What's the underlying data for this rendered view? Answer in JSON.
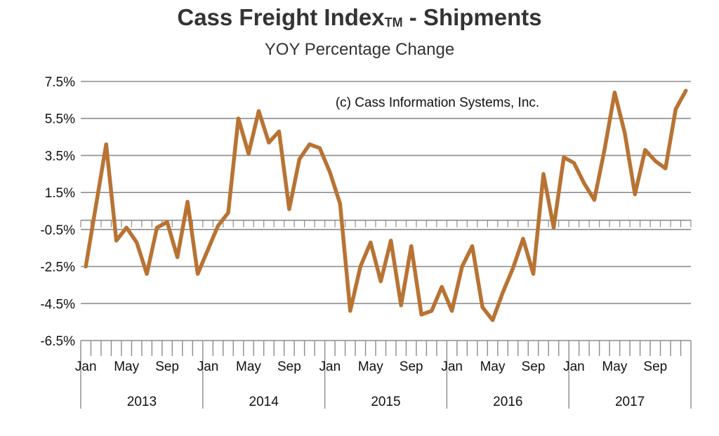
{
  "title_main": "Cass Freight Index",
  "title_tm": "TM",
  "title_rest": " - Shipments",
  "subtitle": "YOY Percentage Change",
  "annotation": "(c) Cass Information Systems, Inc.",
  "colors": {
    "line": "#b87333",
    "grid": "#8c8c8c",
    "axis": "#8c8c8c",
    "text": "#111111"
  },
  "chart_data": {
    "type": "line",
    "title": "Cass Freight Index - Shipments",
    "subtitle": "YOY Percentage Change",
    "ylim": [
      -6.5,
      7.5
    ],
    "yticks": [
      "7.5%",
      "5.5%",
      "3.5%",
      "1.5%",
      "-0.5%",
      "-2.5%",
      "-4.5%",
      "-6.5%"
    ],
    "ytick_values": [
      7.5,
      5.5,
      3.5,
      1.5,
      -0.5,
      -2.5,
      -4.5,
      -6.5
    ],
    "grid": true,
    "x_month_labels": [
      "Jan",
      "May",
      "Sep"
    ],
    "years": [
      "2013",
      "2014",
      "2015",
      "2016",
      "2017"
    ],
    "series": [
      {
        "values": [
          -2.5,
          0.8,
          4.1,
          -1.1,
          -0.4,
          -1.2,
          -2.9,
          -0.4,
          -0.1,
          -2.0,
          1.0,
          -2.9,
          -1.6,
          -0.3,
          0.4,
          5.5,
          3.6,
          5.9,
          4.2,
          4.8,
          0.6,
          3.3,
          4.1,
          3.9,
          2.6,
          0.9,
          -4.9,
          -2.5,
          -1.2,
          -3.3,
          -1.1,
          -4.6,
          -1.4,
          -5.1,
          -4.9,
          -3.6,
          -4.9,
          -2.5,
          -1.4,
          -4.7,
          -5.4,
          -3.9,
          -2.6,
          -1.0,
          -2.9,
          2.5,
          -0.4,
          3.4,
          3.1,
          2.0,
          1.1,
          3.8,
          6.9,
          4.7,
          1.4,
          3.8,
          3.2,
          2.8,
          6.0,
          7.0
        ]
      }
    ]
  }
}
